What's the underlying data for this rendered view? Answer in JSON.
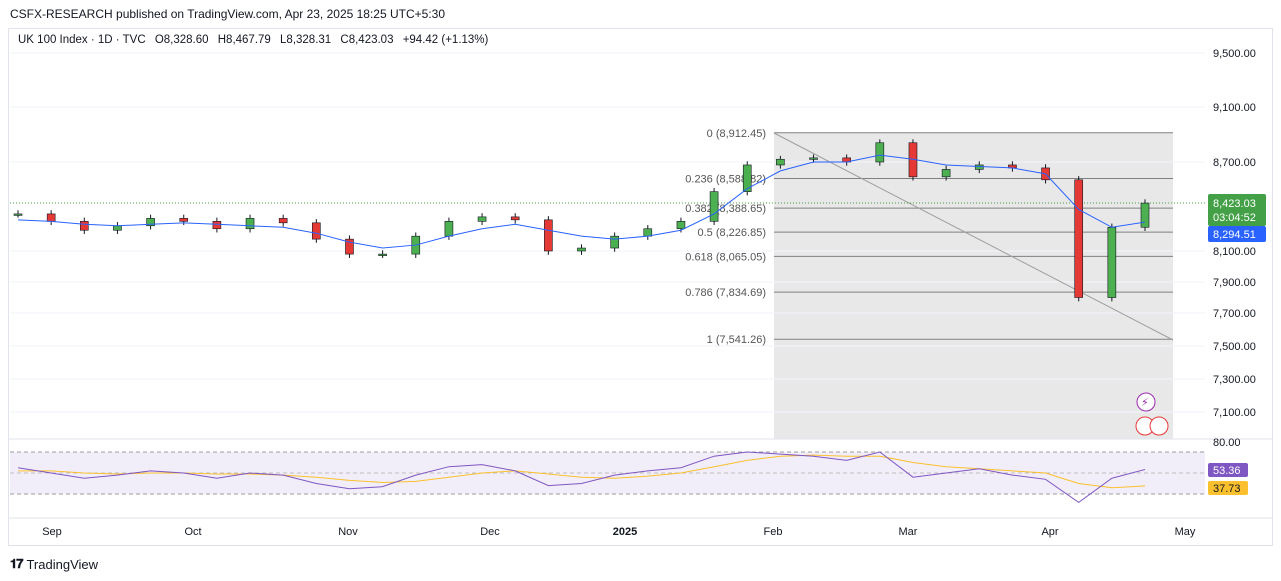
{
  "header": {
    "publisher_line": "CSFX-RESEARCH published on TradingView.com, Apr 23, 2025 18:25 UTC+5:30"
  },
  "legend": {
    "symbol": "UK 100 Index · 1D · TVC",
    "open": "O8,328.60",
    "high": "H8,467.79",
    "low": "L8,328.31",
    "close": "C8,423.03",
    "change": "+94.42 (+1.13%)"
  },
  "footer": {
    "brand": "TradingView",
    "logo": "tradingview-logo-icon"
  },
  "colors": {
    "up": "#26a69a",
    "down": "#ef5350",
    "up_candle": "#4caf50",
    "down_candle": "#e53935",
    "ma": "#2962ff",
    "rsi": "#7e57c2",
    "rsi_ma": "#fbc02d",
    "price_badge": "#43a047",
    "ma_badge": "#2962ff"
  },
  "chart_data": [
    {
      "type": "candlestick",
      "title": "UK 100 Index · 1D · TVC",
      "y_axis_ticks": [
        "9,500.00",
        "9,100.00",
        "8,700.00",
        "8,100.00",
        "7,900.00",
        "7,700.00",
        "7,500.00",
        "7,300.00",
        "7,100.00"
      ],
      "x_axis_ticks": [
        "Sep",
        "Oct",
        "Nov",
        "Dec",
        "2025",
        "Feb",
        "Mar",
        "Apr",
        "May"
      ],
      "ylim": [
        6990,
        9640
      ],
      "last_price_label": "8,423.03",
      "countdown_label": "03:04:52",
      "ma_label": "8,294.51",
      "fib_levels": [
        {
          "label": "0 (8,912.45)",
          "value": 8912.45
        },
        {
          "label": "0.236 (8,588.82)",
          "value": 8588.82
        },
        {
          "label": "0.382 (8,388.65)",
          "value": 8388.65
        },
        {
          "label": "0.5 (8,226.85)",
          "value": 8226.85
        },
        {
          "label": "0.618 (8,065.05)",
          "value": 8065.05
        },
        {
          "label": "0.786 (7,834.69)",
          "value": 7834.69
        },
        {
          "label": "1 (7,541.26)",
          "value": 7541.26
        }
      ],
      "series": [
        {
          "name": "price_close",
          "x": [
            "Aug 26",
            "Sep 2",
            "Sep 9",
            "Sep 16",
            "Sep 23",
            "Sep 30",
            "Oct 7",
            "Oct 14",
            "Oct 21",
            "Oct 28",
            "Nov 4",
            "Nov 11",
            "Nov 18",
            "Nov 25",
            "Dec 2",
            "Dec 9",
            "Dec 16",
            "Dec 23",
            "Dec 30",
            "Jan 6",
            "Jan 13",
            "Jan 20",
            "Jan 27",
            "Feb 3",
            "Feb 10",
            "Feb 17",
            "Feb 24",
            "Mar 3",
            "Mar 10",
            "Mar 17",
            "Mar 24",
            "Mar 31",
            "Apr 7",
            "Apr 14",
            "Apr 21"
          ],
          "values": [
            8350,
            8300,
            8240,
            8270,
            8320,
            8300,
            8250,
            8320,
            8290,
            8180,
            8080,
            8080,
            8200,
            8300,
            8330,
            8310,
            8100,
            8120,
            8200,
            8250,
            8300,
            8500,
            8680,
            8720,
            8730,
            8700,
            8840,
            8600,
            8650,
            8680,
            8660,
            8580,
            7800,
            8260,
            8423
          ]
        },
        {
          "name": "ma",
          "values": [
            8310,
            8300,
            8280,
            8270,
            8280,
            8290,
            8280,
            8270,
            8260,
            8220,
            8160,
            8120,
            8140,
            8200,
            8250,
            8280,
            8240,
            8200,
            8180,
            8200,
            8240,
            8350,
            8520,
            8640,
            8700,
            8700,
            8750,
            8720,
            8680,
            8670,
            8660,
            8620,
            8380,
            8260,
            8294.51
          ]
        }
      ]
    },
    {
      "type": "line",
      "title": "RSI",
      "y_axis_ticks": [
        "80.00"
      ],
      "rsi_label": "53.36",
      "rsi_ma_label": "37.73",
      "ylim": [
        20,
        80
      ],
      "series": [
        {
          "name": "RSI",
          "values": [
            55,
            50,
            45,
            48,
            52,
            50,
            45,
            50,
            48,
            40,
            35,
            37,
            48,
            56,
            58,
            52,
            38,
            40,
            48,
            52,
            55,
            66,
            70,
            68,
            66,
            62,
            70,
            46,
            50,
            54,
            48,
            44,
            22,
            45,
            53.36
          ]
        },
        {
          "name": "RSI MA",
          "values": [
            52,
            52,
            50,
            49,
            50,
            50,
            49,
            49,
            48,
            46,
            43,
            41,
            42,
            46,
            50,
            52,
            49,
            46,
            45,
            47,
            50,
            56,
            62,
            66,
            67,
            66,
            66,
            60,
            56,
            54,
            52,
            50,
            40,
            36,
            37.73
          ]
        }
      ]
    }
  ]
}
